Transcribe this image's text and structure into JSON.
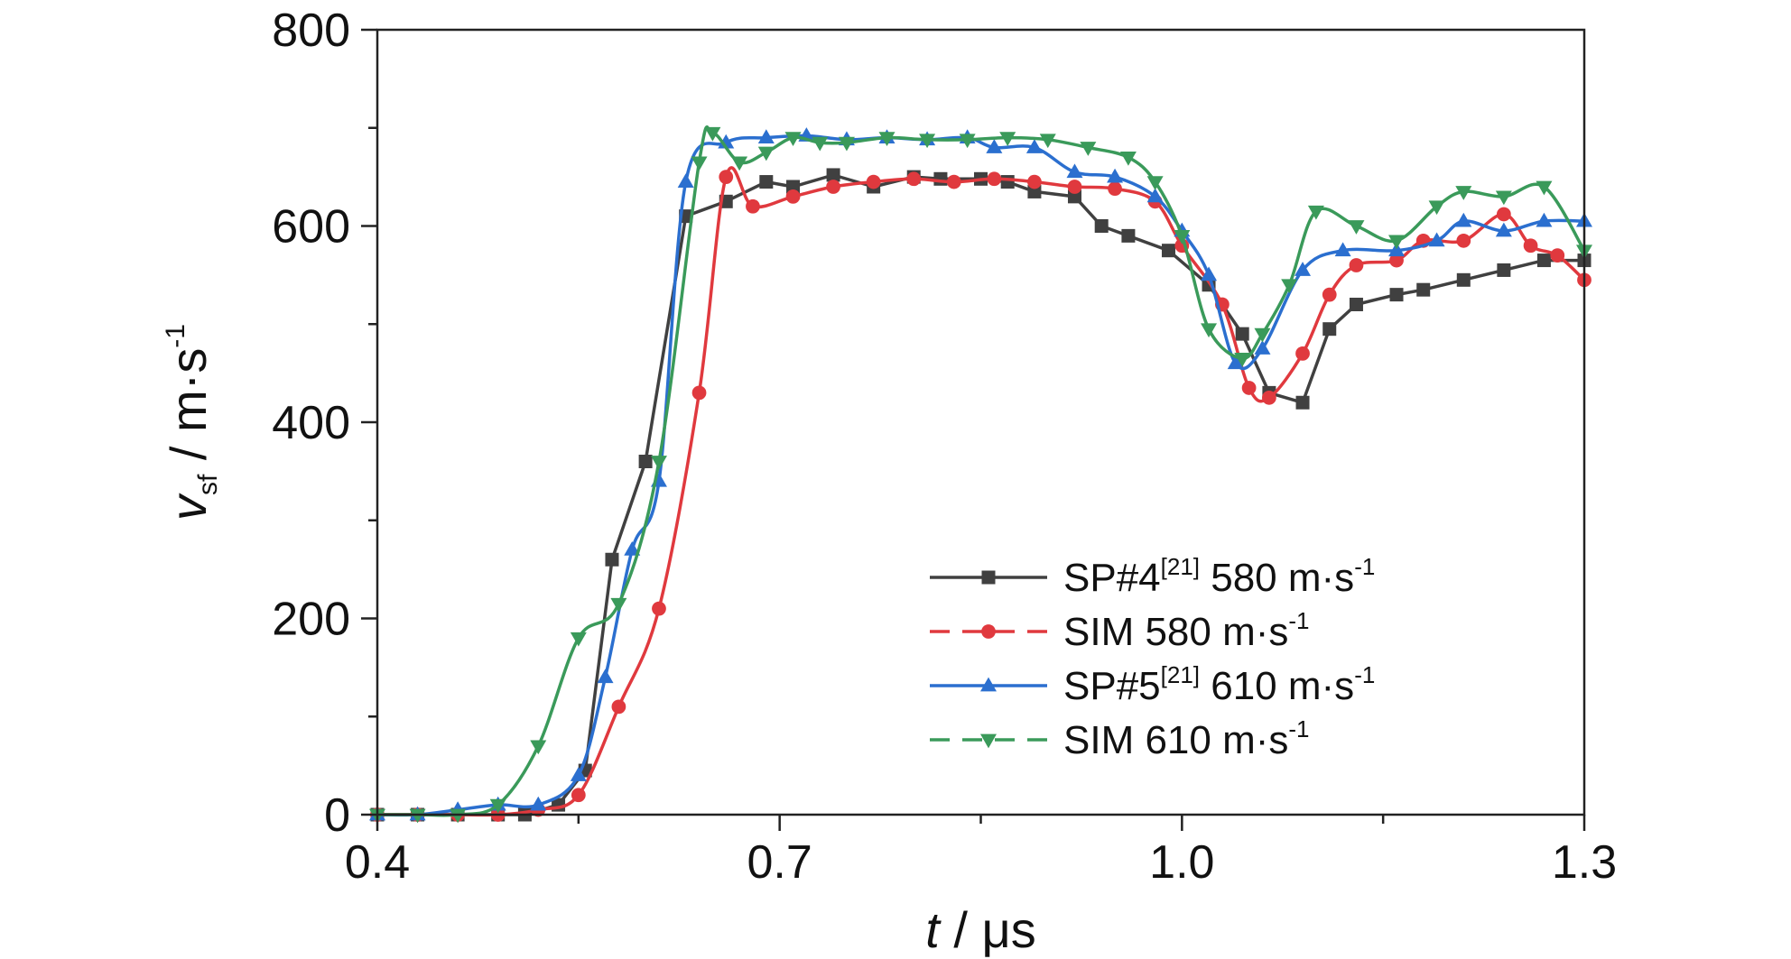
{
  "chart_data": {
    "type": "line",
    "xlabel": {
      "italic": "t",
      "rest": " / μs"
    },
    "ylabel": {
      "italic": "v",
      "sub": "sf",
      "rest": " / m·s",
      "sup": "-1"
    },
    "xlim": [
      0.4,
      1.3
    ],
    "ylim": [
      0,
      800
    ],
    "xticks": [
      0.4,
      0.7,
      1.0,
      1.3
    ],
    "xtick_labels": [
      "0.4",
      "0.7",
      "1.0",
      "1.3"
    ],
    "yticks": [
      0,
      200,
      400,
      600,
      800
    ],
    "ytick_labels": [
      "0",
      "200",
      "400",
      "600",
      "800"
    ],
    "grid": false,
    "legend_position": "bottom-right",
    "series": [
      {
        "name": "SP#4",
        "legend": {
          "main": "SP#4",
          "sup": "[21]",
          "tail": " 580 m·s",
          "tail_sup": "-1"
        },
        "color": "#404040",
        "marker": "square",
        "dash": false,
        "x": [
          0.4,
          0.43,
          0.46,
          0.49,
          0.51,
          0.535,
          0.555,
          0.575,
          0.6,
          0.63,
          0.66,
          0.69,
          0.71,
          0.74,
          0.77,
          0.8,
          0.82,
          0.85,
          0.87,
          0.89,
          0.92,
          0.94,
          0.96,
          0.99,
          1.02,
          1.045,
          1.065,
          1.09,
          1.11,
          1.13,
          1.16,
          1.18,
          1.21,
          1.24,
          1.27,
          1.3
        ],
        "y": [
          0,
          0,
          0,
          0,
          0,
          10,
          45,
          260,
          360,
          610,
          625,
          645,
          640,
          652,
          640,
          650,
          648,
          648,
          645,
          635,
          630,
          600,
          590,
          575,
          540,
          490,
          430,
          420,
          495,
          520,
          530,
          535,
          545,
          555,
          565,
          565
        ]
      },
      {
        "name": "SIM 580 m·s-1",
        "legend": {
          "main": "SIM 580 m·s",
          "sup": "-1",
          "tail": "",
          "tail_sup": ""
        },
        "color": "#e0393e",
        "marker": "circle",
        "dash": true,
        "x": [
          0.4,
          0.43,
          0.46,
          0.49,
          0.52,
          0.55,
          0.58,
          0.61,
          0.64,
          0.66,
          0.68,
          0.71,
          0.74,
          0.77,
          0.8,
          0.83,
          0.86,
          0.89,
          0.92,
          0.95,
          0.98,
          1.0,
          1.03,
          1.05,
          1.065,
          1.09,
          1.11,
          1.13,
          1.16,
          1.18,
          1.21,
          1.24,
          1.26,
          1.28,
          1.3
        ],
        "y": [
          0,
          0,
          0,
          0,
          5,
          20,
          110,
          210,
          430,
          650,
          620,
          630,
          640,
          645,
          648,
          645,
          648,
          645,
          640,
          638,
          625,
          580,
          520,
          435,
          425,
          470,
          530,
          560,
          565,
          585,
          585,
          612,
          580,
          570,
          545
        ]
      },
      {
        "name": "SP#5",
        "legend": {
          "main": "SP#5",
          "sup": "[21]",
          "tail": " 610 m·s",
          "tail_sup": "-1"
        },
        "color": "#2b6fcf",
        "marker": "triangle-up",
        "dash": false,
        "x": [
          0.4,
          0.43,
          0.46,
          0.49,
          0.52,
          0.55,
          0.57,
          0.59,
          0.61,
          0.63,
          0.66,
          0.69,
          0.72,
          0.75,
          0.78,
          0.81,
          0.84,
          0.86,
          0.89,
          0.92,
          0.95,
          0.98,
          1.0,
          1.02,
          1.04,
          1.06,
          1.09,
          1.12,
          1.16,
          1.19,
          1.21,
          1.24,
          1.27,
          1.3
        ],
        "y": [
          0,
          0,
          5,
          10,
          10,
          40,
          140,
          270,
          340,
          645,
          685,
          690,
          692,
          688,
          690,
          688,
          690,
          680,
          680,
          655,
          650,
          630,
          595,
          550,
          460,
          475,
          555,
          575,
          575,
          585,
          605,
          595,
          605,
          605
        ]
      },
      {
        "name": "SIM 610 m·s-1",
        "legend": {
          "main": "SIM 610 m·s",
          "sup": "-1",
          "tail": "",
          "tail_sup": ""
        },
        "color": "#3a9a5a",
        "marker": "triangle-down",
        "dash": true,
        "x": [
          0.4,
          0.43,
          0.46,
          0.49,
          0.52,
          0.55,
          0.58,
          0.61,
          0.64,
          0.65,
          0.67,
          0.69,
          0.71,
          0.73,
          0.75,
          0.78,
          0.81,
          0.84,
          0.87,
          0.9,
          0.93,
          0.96,
          0.98,
          1.0,
          1.02,
          1.045,
          1.06,
          1.08,
          1.1,
          1.13,
          1.16,
          1.19,
          1.21,
          1.24,
          1.27,
          1.3
        ],
        "y": [
          0,
          0,
          0,
          10,
          70,
          180,
          215,
          360,
          665,
          695,
          665,
          675,
          690,
          685,
          685,
          690,
          688,
          688,
          690,
          688,
          680,
          670,
          645,
          590,
          495,
          465,
          490,
          540,
          615,
          600,
          585,
          620,
          635,
          630,
          640,
          575
        ]
      }
    ]
  }
}
